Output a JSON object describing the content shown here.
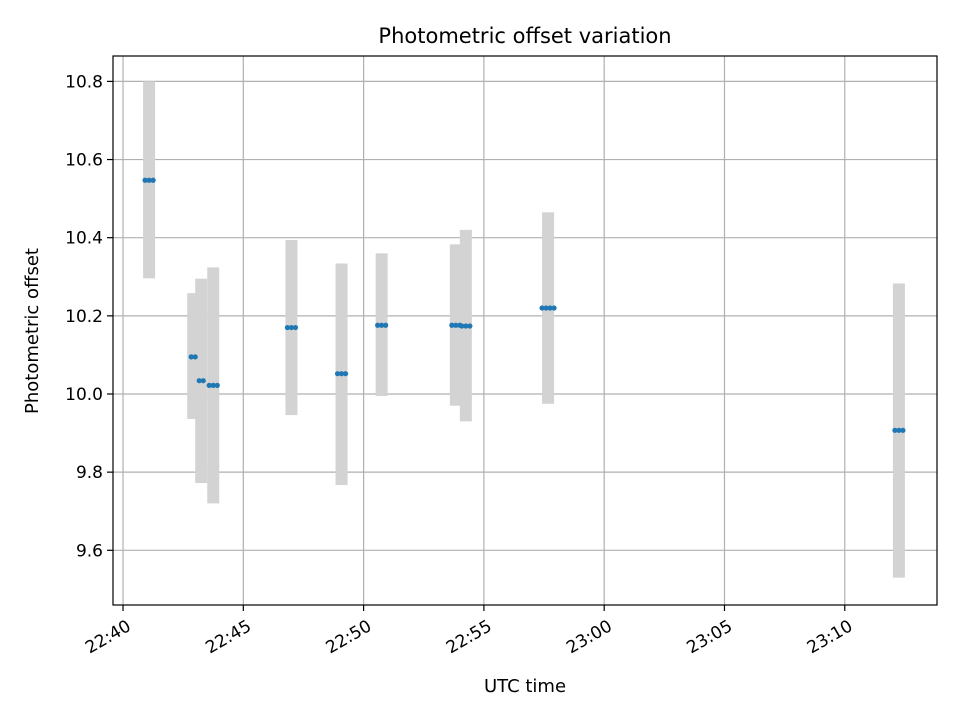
{
  "chart_data": {
    "type": "scatter",
    "title": "Photometric offset variation",
    "xlabel": "UTC time",
    "ylabel": "Photometric offset",
    "xlim": [
      "22:39:35",
      "23:13:50"
    ],
    "ylim": [
      9.46,
      10.865
    ],
    "x_ticks": [
      "22:40",
      "22:45",
      "22:50",
      "22:55",
      "23:00",
      "23:05",
      "23:10"
    ],
    "y_ticks": [
      "9.6",
      "9.8",
      "10.0",
      "10.2",
      "10.4",
      "10.6",
      "10.8"
    ],
    "grid": true,
    "colors": {
      "points": "#1f77b4",
      "error_band": "#d3d3d3",
      "grid": "#b0b0b0"
    },
    "series": [
      {
        "groups": [
          {
            "x": [
              "22:40:55",
              "22:41:05",
              "22:41:15"
            ],
            "y": 10.547,
            "band": [
              10.296,
              10.8
            ]
          },
          {
            "x": [
              "22:42:50",
              "22:43:00"
            ],
            "y": 10.095,
            "band": [
              9.936,
              10.258
            ]
          },
          {
            "x": [
              "22:43:10",
              "22:43:20"
            ],
            "y": 10.034,
            "band": [
              9.772,
              10.295
            ]
          },
          {
            "x": [
              "22:43:35",
              "22:43:45",
              "22:43:55"
            ],
            "y": 10.022,
            "band": [
              9.72,
              10.324
            ]
          },
          {
            "x": [
              "22:46:50",
              "22:47:00",
              "22:47:10"
            ],
            "y": 10.17,
            "band": [
              9.946,
              10.394
            ]
          },
          {
            "x": [
              "22:48:55",
              "22:49:05",
              "22:49:15"
            ],
            "y": 10.052,
            "band": [
              9.767,
              10.334
            ]
          },
          {
            "x": [
              "22:50:35",
              "22:50:45",
              "22:50:55"
            ],
            "y": 10.176,
            "band": [
              9.995,
              10.36
            ]
          },
          {
            "x": [
              "22:53:40",
              "22:53:50",
              "22:54:00"
            ],
            "y": 10.176,
            "band": [
              9.97,
              10.383
            ]
          },
          {
            "x": [
              "22:54:05",
              "22:54:15",
              "22:54:25"
            ],
            "y": 10.174,
            "band": [
              9.93,
              10.42
            ]
          },
          {
            "x": [
              "22:57:25",
              "22:57:35",
              "22:57:45",
              "22:57:55"
            ],
            "y": 10.22,
            "band": [
              9.975,
              10.465
            ]
          },
          {
            "x": [
              "23:12:05",
              "23:12:15",
              "23:12:25"
            ],
            "y": 9.907,
            "band": [
              9.53,
              10.283
            ]
          }
        ]
      }
    ]
  }
}
